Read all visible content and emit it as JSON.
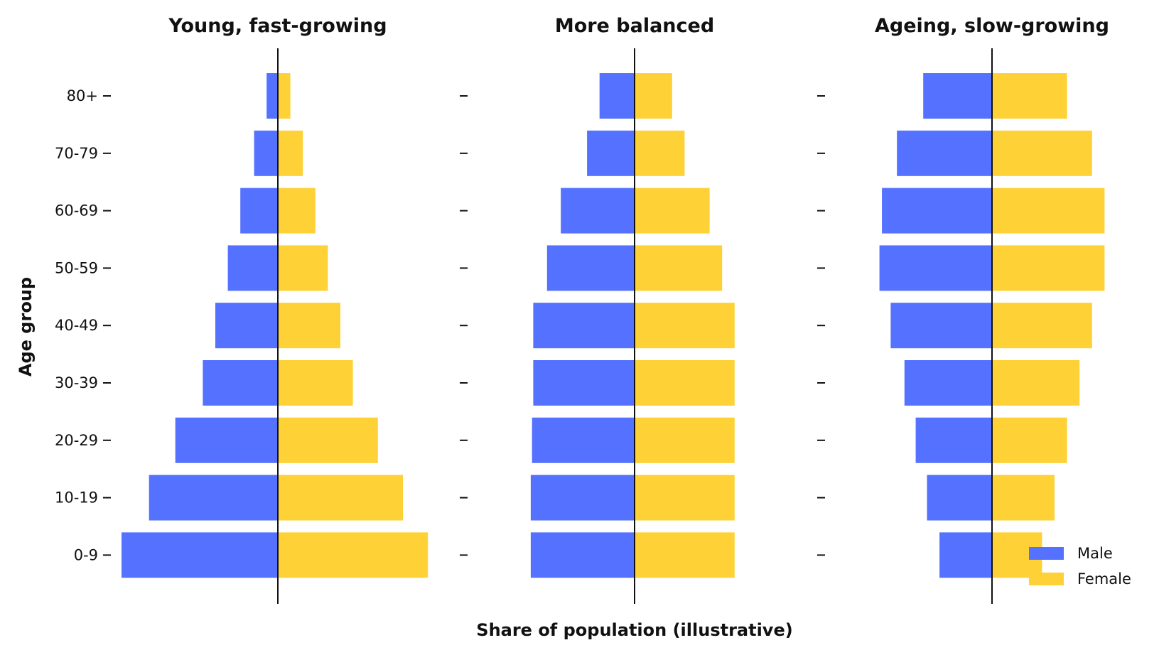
{
  "chart_data": {
    "type": "bar",
    "orientation": "horizontal",
    "layout": "population-pyramid",
    "xlabel": "Share of population (illustrative)",
    "ylabel": "Age group",
    "categories": [
      "0-9",
      "10-19",
      "20-29",
      "30-39",
      "40-49",
      "50-59",
      "60-69",
      "70-79",
      "80+"
    ],
    "legend": {
      "placement": "lower-right",
      "entries": [
        {
          "name": "Male",
          "color": "#5471FF"
        },
        {
          "name": "Female",
          "color": "#FED136"
        }
      ]
    },
    "colors": {
      "male": "#5471FF",
      "female": "#FED136"
    },
    "xlim": [
      -13,
      13
    ],
    "grid": false,
    "panels": [
      {
        "title": "Young, fast-growing",
        "series": [
          {
            "name": "Male",
            "values": [
              12.5,
              10.3,
              8.2,
              6.0,
              5.0,
              4.0,
              3.0,
              1.9,
              0.9
            ]
          },
          {
            "name": "Female",
            "values": [
              12.0,
              10.0,
              8.0,
              6.0,
              5.0,
              4.0,
              3.0,
              2.0,
              1.0
            ]
          }
        ]
      },
      {
        "title": "More balanced",
        "series": [
          {
            "name": "Male",
            "values": [
              8.3,
              8.3,
              8.2,
              8.1,
              8.1,
              7.0,
              5.9,
              3.8,
              2.8
            ]
          },
          {
            "name": "Female",
            "values": [
              8.0,
              8.0,
              8.0,
              8.0,
              8.0,
              7.0,
              6.0,
              4.0,
              3.0
            ]
          }
        ]
      },
      {
        "title": "Ageing, slow-growing",
        "series": [
          {
            "name": "Male",
            "values": [
              4.2,
              5.2,
              6.1,
              7.0,
              8.1,
              9.0,
              8.8,
              7.6,
              5.5
            ]
          },
          {
            "name": "Female",
            "values": [
              4.0,
              5.0,
              6.0,
              7.0,
              8.0,
              9.0,
              9.0,
              8.0,
              6.0
            ]
          }
        ]
      }
    ]
  }
}
